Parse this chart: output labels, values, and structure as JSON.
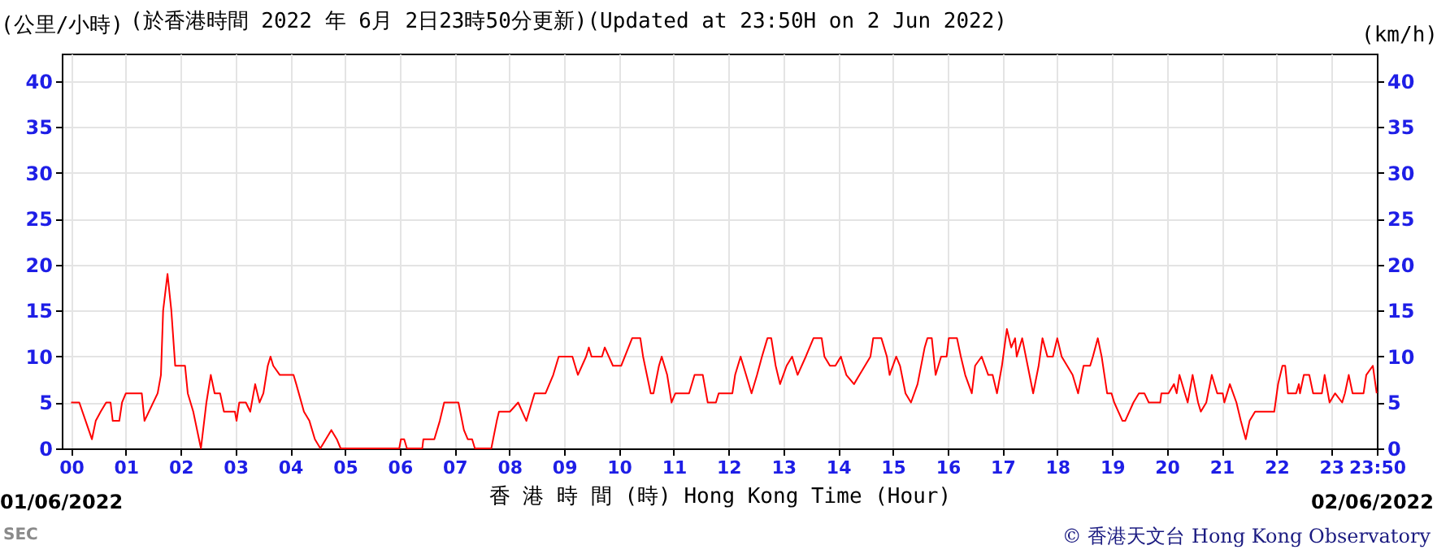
{
  "chart_data": {
    "type": "line",
    "title": "(於香港時間 2022 年 6月 2日23時50分更新)(Updated at 23:50H on 2 Jun 2022)",
    "xlabel": "香 港 時 間 (時) Hong Kong Time (Hour)",
    "ylabel": "(公里/小時)",
    "y2label": "(km/h)",
    "annotations": [
      "01/06/2022",
      "02/06/2022",
      "© 香港天文台 Hong Kong Observatory",
      "SEC"
    ],
    "x": [
      0,
      0.15,
      0.38,
      0.45,
      0.54,
      0.64,
      0.72,
      0.76,
      0.88,
      0.93,
      1.0,
      1.29,
      1.34,
      1.58,
      1.64,
      1.68,
      1.76,
      1.83,
      1.9,
      2.08,
      2.13,
      2.23,
      2.37,
      2.47,
      2.55,
      2.62,
      2.72,
      2.79,
      2.99,
      3.02,
      3.07,
      3.19,
      3.27,
      3.36,
      3.44,
      3.51,
      3.59,
      3.64,
      3.69,
      3.81,
      4.06,
      4.11,
      4.25,
      4.35,
      4.45,
      4.55,
      4.65,
      4.75,
      4.85,
      4.92,
      5.99,
      6.02,
      6.08,
      6.13,
      6.41,
      6.43,
      6.58,
      6.63,
      6.73,
      6.81,
      7.07,
      7.17,
      7.24,
      7.32,
      7.37,
      7.67,
      7.77,
      7.81,
      8.01,
      8.16,
      8.31,
      8.41,
      8.46,
      8.66,
      8.8,
      8.9,
      9.15,
      9.25,
      9.4,
      9.45,
      9.5,
      9.69,
      9.74,
      9.89,
      10.04,
      10.24,
      10.39,
      10.44,
      10.58,
      10.63,
      10.73,
      10.78,
      10.88,
      10.96,
      11.03,
      11.28,
      11.38,
      11.53,
      11.62,
      11.77,
      11.82,
      12.07,
      12.12,
      12.22,
      12.32,
      12.42,
      12.52,
      12.61,
      12.71,
      12.78,
      12.86,
      12.94,
      13.06,
      13.16,
      13.26,
      13.41,
      13.55,
      13.7,
      13.75,
      13.85,
      13.95,
      14.05,
      14.15,
      14.29,
      14.39,
      14.49,
      14.59,
      14.64,
      14.79,
      14.89,
      14.94,
      15.06,
      15.13,
      15.23,
      15.33,
      15.45,
      15.58,
      15.63,
      15.71,
      15.78,
      15.88,
      15.98,
      16.02,
      16.17,
      16.24,
      16.32,
      16.44,
      16.5,
      16.62,
      16.74,
      16.82,
      16.9,
      16.99,
      17.08,
      17.16,
      17.23,
      17.26,
      17.36,
      17.46,
      17.56,
      17.66,
      17.73,
      17.82,
      17.92,
      18.0,
      18.08,
      18.18,
      18.28,
      18.38,
      18.48,
      18.6,
      18.65,
      18.74,
      18.81,
      18.91,
      18.99,
      19.04,
      19.19,
      19.24,
      19.39,
      19.49,
      19.59,
      19.67,
      19.88,
      19.9,
      20.03,
      20.13,
      20.18,
      20.23,
      20.33,
      20.38,
      20.47,
      20.57,
      20.62,
      20.72,
      20.82,
      20.92,
      21.02,
      21.05,
      21.15,
      21.27,
      21.35,
      21.44,
      21.51,
      21.61,
      21.96,
      22.03,
      22.11,
      22.16,
      22.21,
      22.36,
      22.41,
      22.43,
      22.5,
      22.6,
      22.67,
      22.83,
      22.88,
      22.97,
      23.07,
      23.2,
      23.25,
      23.32,
      23.39,
      23.59,
      23.64,
      23.76,
      23.83
    ],
    "series": [
      {
        "color": "#ff0000",
        "values": [
          5,
          5,
          1,
          3,
          4,
          5,
          5,
          3,
          3,
          5,
          6,
          6,
          3,
          6,
          8,
          15,
          19,
          15,
          9,
          9,
          6,
          4,
          0,
          5,
          8,
          6,
          6,
          4,
          4,
          3,
          5,
          5,
          4,
          7,
          5,
          6,
          9,
          10,
          9,
          8,
          8,
          7,
          4,
          3,
          1,
          0,
          1,
          2,
          1,
          0,
          0,
          1,
          1,
          0,
          0,
          1,
          1,
          1,
          3,
          5,
          5,
          2,
          1,
          1,
          0,
          0,
          3,
          4,
          4,
          5,
          3,
          5,
          6,
          6,
          8,
          10,
          10,
          8,
          10,
          11,
          10,
          10,
          11,
          9,
          9,
          12,
          12,
          10,
          6,
          6,
          9,
          10,
          8,
          5,
          6,
          6,
          8,
          8,
          5,
          5,
          6,
          6,
          8,
          10,
          8,
          6,
          8,
          10,
          12,
          12,
          9,
          7,
          9,
          10,
          8,
          10,
          12,
          12,
          10,
          9,
          9,
          10,
          8,
          7,
          8,
          9,
          10,
          12,
          12,
          10,
          8,
          10,
          9,
          6,
          5,
          7,
          11,
          12,
          12,
          8,
          10,
          10,
          12,
          12,
          10,
          8,
          6,
          9,
          10,
          8,
          8,
          6,
          9,
          13,
          11,
          12,
          10,
          12,
          9,
          6,
          9,
          12,
          10,
          10,
          12,
          10,
          9,
          8,
          6,
          9,
          9,
          10,
          12,
          10,
          6,
          6,
          5,
          3,
          3,
          5,
          6,
          6,
          5,
          5,
          6,
          6,
          7,
          6,
          8,
          6,
          5,
          8,
          5,
          4,
          5,
          8,
          6,
          6,
          5,
          7,
          5,
          3,
          1,
          3,
          4,
          4,
          7,
          9,
          9,
          6,
          6,
          7,
          6,
          8,
          8,
          6,
          6,
          8,
          5,
          6,
          5,
          6,
          8,
          6,
          6,
          8,
          9,
          6
        ]
      }
    ],
    "xlim": [
      -0.17,
      23.833
    ],
    "ylim": [
      0,
      43
    ],
    "y2lim": [
      0,
      43
    ],
    "xticks": [
      {
        "value": 0,
        "label": "00"
      },
      {
        "value": 1,
        "label": "01"
      },
      {
        "value": 2,
        "label": "02"
      },
      {
        "value": 3,
        "label": "03"
      },
      {
        "value": 4,
        "label": "04"
      },
      {
        "value": 5,
        "label": "05"
      },
      {
        "value": 6,
        "label": "06"
      },
      {
        "value": 7,
        "label": "07"
      },
      {
        "value": 8,
        "label": "08"
      },
      {
        "value": 9,
        "label": "09"
      },
      10,
      11,
      12,
      13,
      14,
      15,
      16,
      17,
      18,
      19,
      20,
      21,
      22,
      23,
      {
        "value": 23.833,
        "label": "23:50"
      }
    ],
    "yticks": [
      0,
      5,
      10,
      15,
      20,
      25,
      30,
      35,
      40
    ],
    "y2ticks": [
      0,
      5,
      10,
      15,
      20,
      25,
      30,
      35,
      40
    ],
    "grid": true,
    "legend": false,
    "marker": "none",
    "line_style": "solid"
  }
}
